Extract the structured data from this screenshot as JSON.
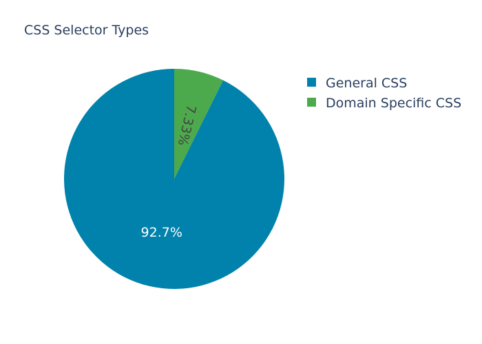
{
  "chart_data": {
    "type": "pie",
    "title": "CSS Selector Types",
    "labels": [
      "General CSS",
      "Domain Specific CSS"
    ],
    "values": [
      92.67,
      7.33
    ],
    "value_labels": [
      "92.7%",
      "7.33%"
    ],
    "colors": [
      "#0082ac",
      "#4caa4d"
    ],
    "legend_position": "top-right"
  }
}
